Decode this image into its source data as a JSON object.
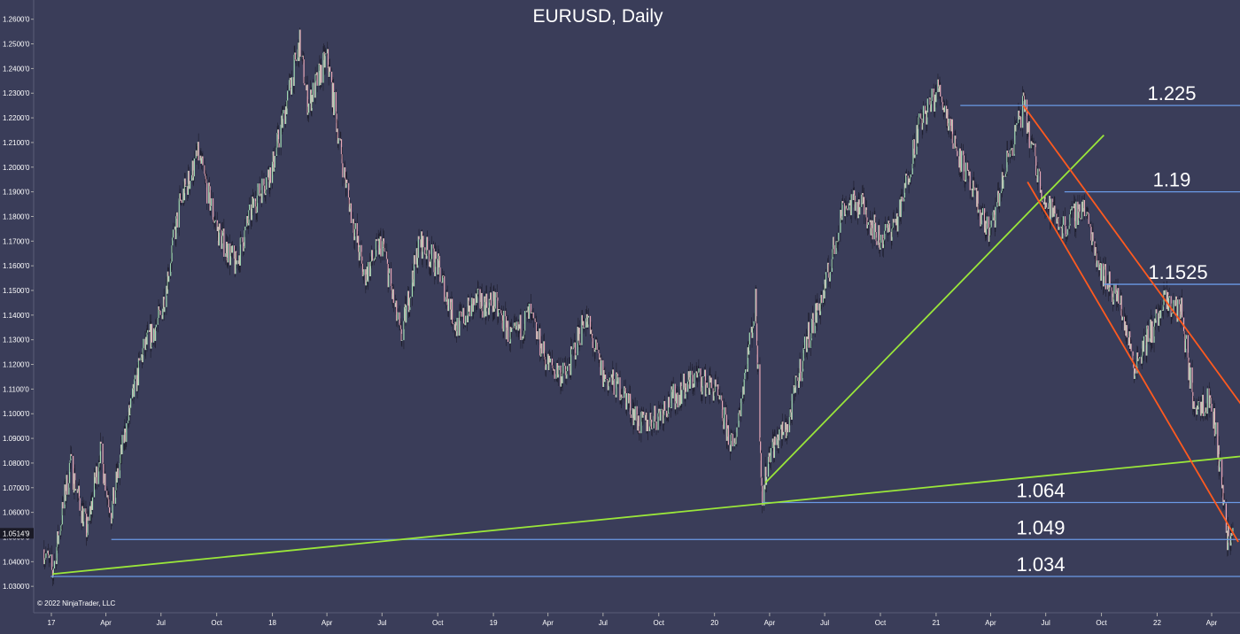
{
  "chart_data": {
    "type": "candlestick",
    "title": "EURUSD, Daily",
    "copyright": "© 2022 NinjaTrader, LLC",
    "ylim": [
      1.025,
      1.263
    ],
    "y_ticks": [
      "1.0300'0",
      "1.0400'0",
      "1.0500'0",
      "1.0600'0",
      "1.0700'0",
      "1.0800'0",
      "1.0900'0",
      "1.1000'0",
      "1.1100'0",
      "1.1200'0",
      "1.1300'0",
      "1.1400'0",
      "1.1500'0",
      "1.1600'0",
      "1.1700'0",
      "1.1800'0",
      "1.1900'0",
      "1.2000'0",
      "1.2100'0",
      "1.2200'0",
      "1.2300'0",
      "1.2400'0",
      "1.2500'0",
      "1.2600'0"
    ],
    "y_tick_values": [
      1.03,
      1.04,
      1.05,
      1.06,
      1.07,
      1.08,
      1.09,
      1.1,
      1.11,
      1.12,
      1.13,
      1.14,
      1.15,
      1.16,
      1.17,
      1.18,
      1.19,
      1.2,
      1.21,
      1.22,
      1.23,
      1.24,
      1.25,
      1.26
    ],
    "current_price_label": "1.0514'9",
    "current_price": 1.0515,
    "x_ticks": [
      "17",
      "Apr",
      "Jul",
      "Oct",
      "18",
      "Apr",
      "Jul",
      "Oct",
      "19",
      "Apr",
      "Jul",
      "Oct",
      "20",
      "Apr",
      "Jul",
      "Oct",
      "21",
      "Apr",
      "Jul",
      "Oct",
      "22",
      "Apr"
    ],
    "x_tick_values": [
      "2017-01",
      "2017-04",
      "2017-07",
      "2017-10",
      "2018-01",
      "2018-04",
      "2018-07",
      "2018-10",
      "2019-01",
      "2019-04",
      "2019-07",
      "2019-10",
      "2020-01",
      "2020-04",
      "2020-07",
      "2020-10",
      "2021-01",
      "2021-04",
      "2021-07",
      "2021-10",
      "2022-01",
      "2022-04"
    ],
    "x_range": [
      "2016-12",
      "2022-05"
    ],
    "price_path": [
      [
        "2016-12-20",
        1.045
      ],
      [
        "2017-01-03",
        1.035
      ],
      [
        "2017-02-01",
        1.08
      ],
      [
        "2017-03-01",
        1.052
      ],
      [
        "2017-03-22",
        1.085
      ],
      [
        "2017-04-10",
        1.06
      ],
      [
        "2017-05-01",
        1.09
      ],
      [
        "2017-06-01",
        1.125
      ],
      [
        "2017-07-01",
        1.14
      ],
      [
        "2017-08-01",
        1.185
      ],
      [
        "2017-09-01",
        1.205
      ],
      [
        "2017-10-01",
        1.175
      ],
      [
        "2017-11-01",
        1.16
      ],
      [
        "2017-12-01",
        1.185
      ],
      [
        "2018-01-01",
        1.2
      ],
      [
        "2018-02-15",
        1.25
      ],
      [
        "2018-03-01",
        1.225
      ],
      [
        "2018-04-01",
        1.245
      ],
      [
        "2018-05-01",
        1.195
      ],
      [
        "2018-06-01",
        1.155
      ],
      [
        "2018-07-01",
        1.17
      ],
      [
        "2018-08-01",
        1.13
      ],
      [
        "2018-09-01",
        1.17
      ],
      [
        "2018-10-01",
        1.16
      ],
      [
        "2018-11-01",
        1.135
      ],
      [
        "2018-12-01",
        1.145
      ],
      [
        "2019-01-01",
        1.145
      ],
      [
        "2019-02-01",
        1.13
      ],
      [
        "2019-03-01",
        1.14
      ],
      [
        "2019-04-01",
        1.12
      ],
      [
        "2019-05-01",
        1.115
      ],
      [
        "2019-06-01",
        1.14
      ],
      [
        "2019-07-01",
        1.115
      ],
      [
        "2019-08-01",
        1.11
      ],
      [
        "2019-09-01",
        1.095
      ],
      [
        "2019-10-01",
        1.1
      ],
      [
        "2019-11-01",
        1.108
      ],
      [
        "2019-12-01",
        1.115
      ],
      [
        "2020-01-01",
        1.11
      ],
      [
        "2020-02-01",
        1.085
      ],
      [
        "2020-03-09",
        1.145
      ],
      [
        "2020-03-20",
        1.065
      ],
      [
        "2020-04-01",
        1.085
      ],
      [
        "2020-05-01",
        1.095
      ],
      [
        "2020-06-01",
        1.13
      ],
      [
        "2020-07-01",
        1.15
      ],
      [
        "2020-08-01",
        1.185
      ],
      [
        "2020-09-01",
        1.185
      ],
      [
        "2020-10-01",
        1.17
      ],
      [
        "2020-11-01",
        1.18
      ],
      [
        "2020-12-01",
        1.215
      ],
      [
        "2021-01-06",
        1.232
      ],
      [
        "2021-02-01",
        1.21
      ],
      [
        "2021-03-01",
        1.19
      ],
      [
        "2021-03-31",
        1.172
      ],
      [
        "2021-05-01",
        1.205
      ],
      [
        "2021-05-25",
        1.225
      ],
      [
        "2021-06-15",
        1.2
      ],
      [
        "2021-07-01",
        1.185
      ],
      [
        "2021-08-01",
        1.175
      ],
      [
        "2021-09-01",
        1.185
      ],
      [
        "2021-10-01",
        1.158
      ],
      [
        "2021-11-01",
        1.145
      ],
      [
        "2021-11-24",
        1.12
      ],
      [
        "2021-12-15",
        1.13
      ],
      [
        "2022-01-14",
        1.145
      ],
      [
        "2022-02-10",
        1.142
      ],
      [
        "2022-03-01",
        1.105
      ],
      [
        "2022-04-01",
        1.105
      ],
      [
        "2022-04-14",
        1.08
      ],
      [
        "2022-04-27",
        1.05
      ],
      [
        "2022-05-06",
        1.051
      ]
    ],
    "levels": [
      {
        "label": "1.225",
        "value": 1.225,
        "from": "2021-02-10",
        "to": "2022-05-31"
      },
      {
        "label": "1.19",
        "value": 1.19,
        "from": "2021-08-01",
        "to": "2022-05-31"
      },
      {
        "label": "1.1525",
        "value": 1.1525,
        "from": "2021-10-05",
        "to": "2022-05-31"
      },
      {
        "label": "1.064",
        "value": 1.064,
        "from": "2020-03-20",
        "to": "2022-05-31"
      },
      {
        "label": "1.049",
        "value": 1.049,
        "from": "2017-04-10",
        "to": "2022-05-31"
      },
      {
        "label": "1.034",
        "value": 1.034,
        "from": "2016-12-31",
        "to": "2022-05-31"
      }
    ],
    "trendlines": [
      {
        "color": "#9ae63a",
        "from": [
          "2017-01-03",
          1.035
        ],
        "to": [
          "2022-05-31",
          1.083
        ]
      },
      {
        "color": "#9ae63a",
        "from": [
          "2020-03-25",
          1.072
        ],
        "to": [
          "2021-10-05",
          1.213
        ]
      },
      {
        "color": "#ff5a1f",
        "from": [
          "2021-05-25",
          1.225
        ],
        "to": [
          "2022-05-31",
          1.1
        ]
      },
      {
        "color": "#ff5a1f",
        "from": [
          "2021-06-01",
          1.194
        ],
        "to": [
          "2022-05-15",
          1.048
        ]
      }
    ],
    "colors": {
      "background": "#3a3d59",
      "level": "#6a9ae6",
      "up": "#a3ddb5",
      "down": "#e8a8b8",
      "axis_text": "#ffffff"
    }
  }
}
